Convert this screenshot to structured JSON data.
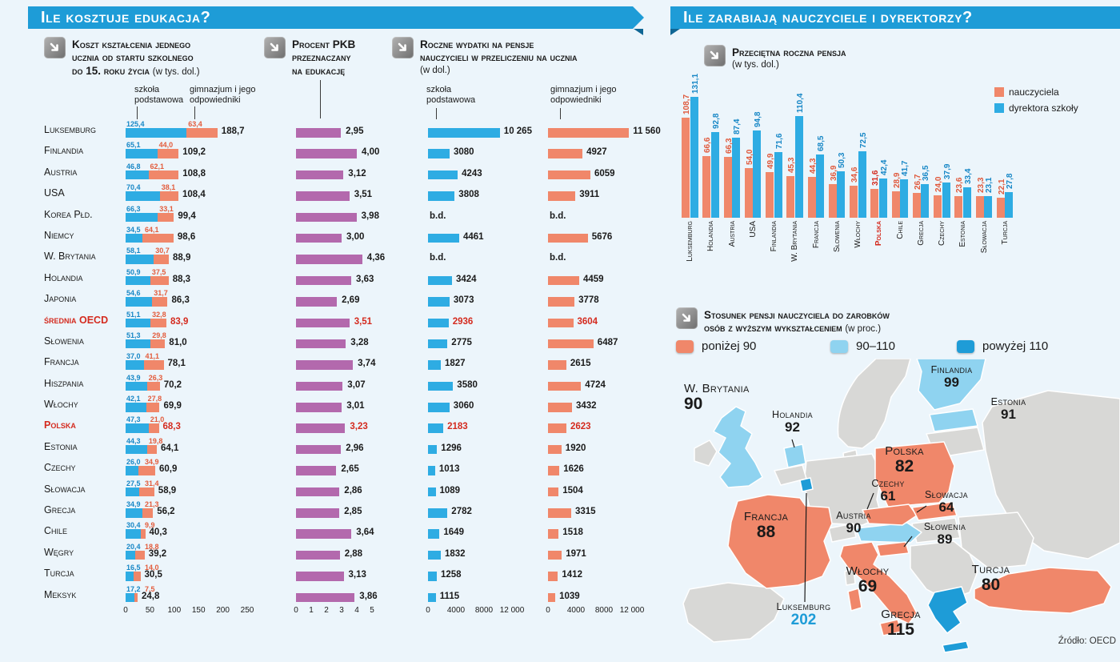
{
  "page": {
    "left_header": "Ile kosztuje edukacja?",
    "right_header": "Ile zarabiają nauczyciele i dyrektorzy?",
    "source": "Źródło: OECD"
  },
  "colors": {
    "header": "#1E9CD7",
    "blue": "#2EACE3",
    "orange": "#F0876A",
    "purple": "#B369AD",
    "red": "#D42A1E",
    "gray": "#D8D8D6",
    "lightblue": "#8FD3F0",
    "darkblue": "#1E9CD7",
    "text": "#1A1A1A",
    "bg": "#ECF5FB"
  },
  "chart_data": [
    {
      "id": "education-cost-per-student",
      "type": "bar",
      "title_lines": [
        "Koszt kształcenia jednego",
        "ucznia od startu szkolnego",
        "do 15. roku życia"
      ],
      "unit": "(w tys. dol.)",
      "series": [
        "szkoła podstawowa",
        "gimnazjum i jego odpowiedniki"
      ],
      "xlim": [
        0,
        250
      ],
      "axis": [
        "0",
        "50",
        "100",
        "150",
        "200",
        "250"
      ],
      "gdp": {
        "title_lines": [
          "Procent PKB",
          "przeznaczany",
          "na edukację"
        ],
        "xlim": [
          0,
          5
        ],
        "axis": [
          "0",
          "1",
          "2",
          "3",
          "4",
          "5"
        ]
      },
      "spend": {
        "title_lines": [
          "Roczne wydatki na pensje",
          "nauczycieli w przeliczeniu na ucznia"
        ],
        "unit": "(w dol.)",
        "series": [
          "szkoła podstawowa",
          "gimnazjum i jego odpowiedniki"
        ],
        "xlim": [
          0,
          12000
        ],
        "axis": [
          "0",
          "4000",
          "8000",
          "12 000"
        ]
      },
      "rows": [
        {
          "country": "Luksemburg",
          "primary": "125,4",
          "secondary": "63,4",
          "total": "188,7",
          "gdp": "2,95",
          "spend_primary": "10 265",
          "spend_secondary": "11 560",
          "highlight": false
        },
        {
          "country": "Finlandia",
          "primary": "65,1",
          "secondary": "44,0",
          "total": "109,2",
          "gdp": "4,00",
          "spend_primary": "3080",
          "spend_secondary": "4927",
          "highlight": false
        },
        {
          "country": "Austria",
          "primary": "46,8",
          "secondary": "62,1",
          "total": "108,8",
          "gdp": "3,12",
          "spend_primary": "4243",
          "spend_secondary": "6059",
          "highlight": false
        },
        {
          "country": "USA",
          "primary": "70,4",
          "secondary": "38,1",
          "total": "108,4",
          "gdp": "3,51",
          "spend_primary": "3808",
          "spend_secondary": "3911",
          "highlight": false
        },
        {
          "country": "Korea Płd.",
          "primary": "66,3",
          "secondary": "33,1",
          "total": "99,4",
          "gdp": "3,98",
          "spend_primary": "b.d.",
          "spend_secondary": "b.d.",
          "highlight": false
        },
        {
          "country": "Niemcy",
          "primary": "34,5",
          "secondary": "64,1",
          "total": "98,6",
          "gdp": "3,00",
          "spend_primary": "4461",
          "spend_secondary": "5676",
          "highlight": false
        },
        {
          "country": "W. Brytania",
          "primary": "58,1",
          "secondary": "30,7",
          "total": "88,9",
          "gdp": "4,36",
          "spend_primary": "b.d.",
          "spend_secondary": "b.d.",
          "highlight": false
        },
        {
          "country": "Holandia",
          "primary": "50,9",
          "secondary": "37,5",
          "total": "88,3",
          "gdp": "3,63",
          "spend_primary": "3424",
          "spend_secondary": "4459",
          "highlight": false
        },
        {
          "country": "Japonia",
          "primary": "54,6",
          "secondary": "31,7",
          "total": "86,3",
          "gdp": "2,69",
          "spend_primary": "3073",
          "spend_secondary": "3778",
          "highlight": false
        },
        {
          "country": "średnia OECD",
          "primary": "51,1",
          "secondary": "32,8",
          "total": "83,9",
          "gdp": "3,51",
          "spend_primary": "2936",
          "spend_secondary": "3604",
          "highlight": true
        },
        {
          "country": "Słowenia",
          "primary": "51,3",
          "secondary": "29,8",
          "total": "81,0",
          "gdp": "3,28",
          "spend_primary": "2775",
          "spend_secondary": "6487",
          "highlight": false
        },
        {
          "country": "Francja",
          "primary": "37,0",
          "secondary": "41,1",
          "total": "78,1",
          "gdp": "3,74",
          "spend_primary": "1827",
          "spend_secondary": "2615",
          "highlight": false
        },
        {
          "country": "Hiszpania",
          "primary": "43,9",
          "secondary": "26,3",
          "total": "70,2",
          "gdp": "3,07",
          "spend_primary": "3580",
          "spend_secondary": "4724",
          "highlight": false
        },
        {
          "country": "Włochy",
          "primary": "42,1",
          "secondary": "27,8",
          "total": "69,9",
          "gdp": "3,01",
          "spend_primary": "3060",
          "spend_secondary": "3432",
          "highlight": false
        },
        {
          "country": "Polska",
          "primary": "47,3",
          "secondary": "21,0",
          "total": "68,3",
          "gdp": "3,23",
          "spend_primary": "2183",
          "spend_secondary": "2623",
          "highlight": true
        },
        {
          "country": "Estonia",
          "primary": "44,3",
          "secondary": "19,8",
          "total": "64,1",
          "gdp": "2,96",
          "spend_primary": "1296",
          "spend_secondary": "1920",
          "highlight": false
        },
        {
          "country": "Czechy",
          "primary": "26,0",
          "secondary": "34,9",
          "total": "60,9",
          "gdp": "2,65",
          "spend_primary": "1013",
          "spend_secondary": "1626",
          "highlight": false
        },
        {
          "country": "Słowacja",
          "primary": "27,5",
          "secondary": "31,4",
          "total": "58,9",
          "gdp": "2,86",
          "spend_primary": "1089",
          "spend_secondary": "1504",
          "highlight": false
        },
        {
          "country": "Grecja",
          "primary": "34,9",
          "secondary": "21,3",
          "total": "56,2",
          "gdp": "2,85",
          "spend_primary": "2782",
          "spend_secondary": "3315",
          "highlight": false
        },
        {
          "country": "Chile",
          "primary": "30,4",
          "secondary": "9,9",
          "total": "40,3",
          "gdp": "3,64",
          "spend_primary": "1649",
          "spend_secondary": "1518",
          "highlight": false
        },
        {
          "country": "Węgry",
          "primary": "20,4",
          "secondary": "18,8",
          "total": "39,2",
          "gdp": "2,88",
          "spend_primary": "1832",
          "spend_secondary": "1971",
          "highlight": false
        },
        {
          "country": "Turcja",
          "primary": "16,5",
          "secondary": "14,0",
          "total": "30,5",
          "gdp": "3,13",
          "spend_primary": "1258",
          "spend_secondary": "1412",
          "highlight": false
        },
        {
          "country": "Meksyk",
          "primary": "17,2",
          "secondary": "7,5",
          "total": "24,8",
          "gdp": "3,86",
          "spend_primary": "1115",
          "spend_secondary": "1039",
          "highlight": false
        }
      ]
    },
    {
      "id": "average-annual-salary",
      "type": "bar",
      "title": "Przeciętna roczna pensja",
      "unit": "(w tys. dol.)",
      "legend": [
        {
          "label": "nauczyciela"
        },
        {
          "label": "dyrektora szkoły"
        }
      ],
      "ylim": [
        0,
        140
      ],
      "items": [
        {
          "country": "Luksemburg",
          "teacher": "108,7",
          "director": "131,1",
          "highlight": false
        },
        {
          "country": "Holandia",
          "teacher": "66,6",
          "director": "92,8",
          "highlight": false
        },
        {
          "country": "Austria",
          "teacher": "66,3",
          "director": "87,4",
          "highlight": false
        },
        {
          "country": "USA",
          "teacher": "54,0",
          "director": "94,8",
          "highlight": false
        },
        {
          "country": "Finlandia",
          "teacher": "49,9",
          "director": "71,6",
          "highlight": false
        },
        {
          "country": "W. Brytania",
          "teacher": "45,3",
          "director": "110,4",
          "highlight": false
        },
        {
          "country": "Francja",
          "teacher": "44,3",
          "director": "68,5",
          "highlight": false
        },
        {
          "country": "Słowenia",
          "teacher": "36,9",
          "director": "50,3",
          "highlight": false
        },
        {
          "country": "Włochy",
          "teacher": "34,6",
          "director": "72,5",
          "highlight": false
        },
        {
          "country": "Polska",
          "teacher": "31,6",
          "director": "42,4",
          "highlight": true
        },
        {
          "country": "Chile",
          "teacher": "28,9",
          "director": "41,7",
          "highlight": false
        },
        {
          "country": "Grecja",
          "teacher": "26,7",
          "director": "36,5",
          "highlight": false
        },
        {
          "country": "Czechy",
          "teacher": "24,0",
          "director": "37,9",
          "highlight": false
        },
        {
          "country": "Estonia",
          "teacher": "23,6",
          "director": "33,4",
          "highlight": false
        },
        {
          "country": "Słowacja",
          "teacher": "23,3",
          "director": "23,1",
          "highlight": false
        },
        {
          "country": "Turcja",
          "teacher": "22,1",
          "director": "27,8",
          "highlight": false
        }
      ]
    },
    {
      "id": "teacher-salary-to-graduate-earnings",
      "type": "heatmap",
      "title_lines": [
        "Stosunek pensji nauczyciela do zarobków",
        "osób z wyższym wykształceniem"
      ],
      "unit": "(w proc.)",
      "legend": [
        {
          "label": "poniżej 90",
          "color": "orange"
        },
        {
          "label": "90–110",
          "color": "lightblue"
        },
        {
          "label": "powyżej 110",
          "color": "darkblue"
        }
      ],
      "labels": [
        {
          "name": "W. Brytania",
          "value": "90",
          "band": "90–110"
        },
        {
          "name": "Holandia",
          "value": "92",
          "band": "90–110"
        },
        {
          "name": "Finlandia",
          "value": "99",
          "band": "90–110"
        },
        {
          "name": "Estonia",
          "value": "91",
          "band": "90–110"
        },
        {
          "name": "Polska",
          "value": "82",
          "band": "poniżej 90"
        },
        {
          "name": "Czechy",
          "value": "61",
          "band": "poniżej 90"
        },
        {
          "name": "Słowacja",
          "value": "64",
          "band": "poniżej 90"
        },
        {
          "name": "Słowenia",
          "value": "89",
          "band": "poniżej 90"
        },
        {
          "name": "Austria",
          "value": "90",
          "band": "90–110"
        },
        {
          "name": "Francja",
          "value": "88",
          "band": "poniżej 90"
        },
        {
          "name": "Włochy",
          "value": "69",
          "band": "poniżej 90"
        },
        {
          "name": "Luksemburg",
          "value": "202",
          "band": "powyżej 110"
        },
        {
          "name": "Turcja",
          "value": "80",
          "band": "poniżej 90"
        },
        {
          "name": "Grecja",
          "value": "115",
          "band": "powyżej 110"
        }
      ]
    }
  ]
}
